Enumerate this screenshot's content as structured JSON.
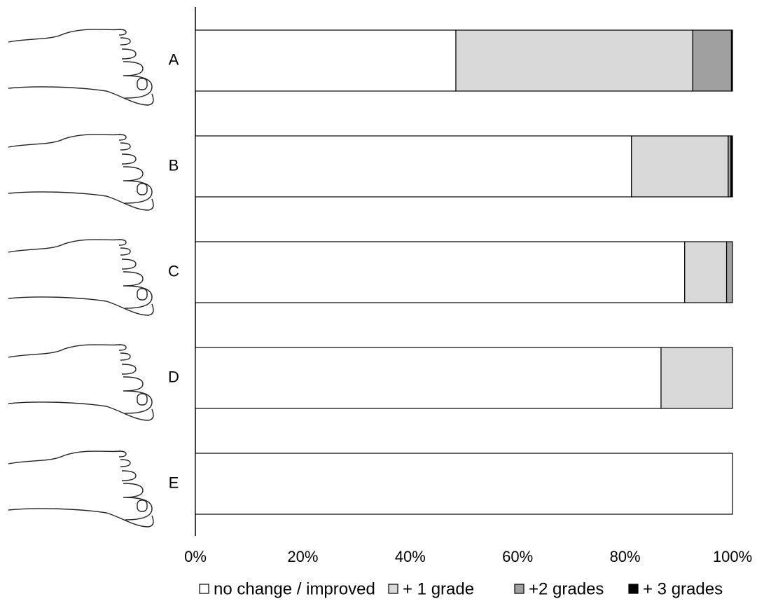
{
  "chart_data": {
    "type": "stacked_barh",
    "categories": [
      "A",
      "B",
      "C",
      "D",
      "E"
    ],
    "series": [
      {
        "name": "no change / improved",
        "color": "#ffffff",
        "values": [
          48.5,
          81.2,
          91.1,
          86.7,
          100
        ]
      },
      {
        "name": "+ 1 grade",
        "color": "#d9d9d9",
        "values": [
          44.1,
          18.0,
          7.8,
          13.3,
          0
        ]
      },
      {
        "name": "+2 grades",
        "color": "#a0a0a0",
        "values": [
          7.2,
          0.5,
          1.1,
          0,
          0
        ]
      },
      {
        "name": "+ 3 grades",
        "color": "#000000",
        "values": [
          0.2,
          0.3,
          0,
          0,
          0
        ]
      }
    ],
    "xlim": [
      0,
      100
    ],
    "xticks": [
      {
        "value": 0,
        "label": "0%"
      },
      {
        "value": 20,
        "label": "20%"
      },
      {
        "value": 40,
        "label": "40%"
      },
      {
        "value": 60,
        "label": "60%"
      },
      {
        "value": 80,
        "label": "80%"
      },
      {
        "value": 100,
        "label": "100%"
      }
    ],
    "legend": "bottom"
  }
}
